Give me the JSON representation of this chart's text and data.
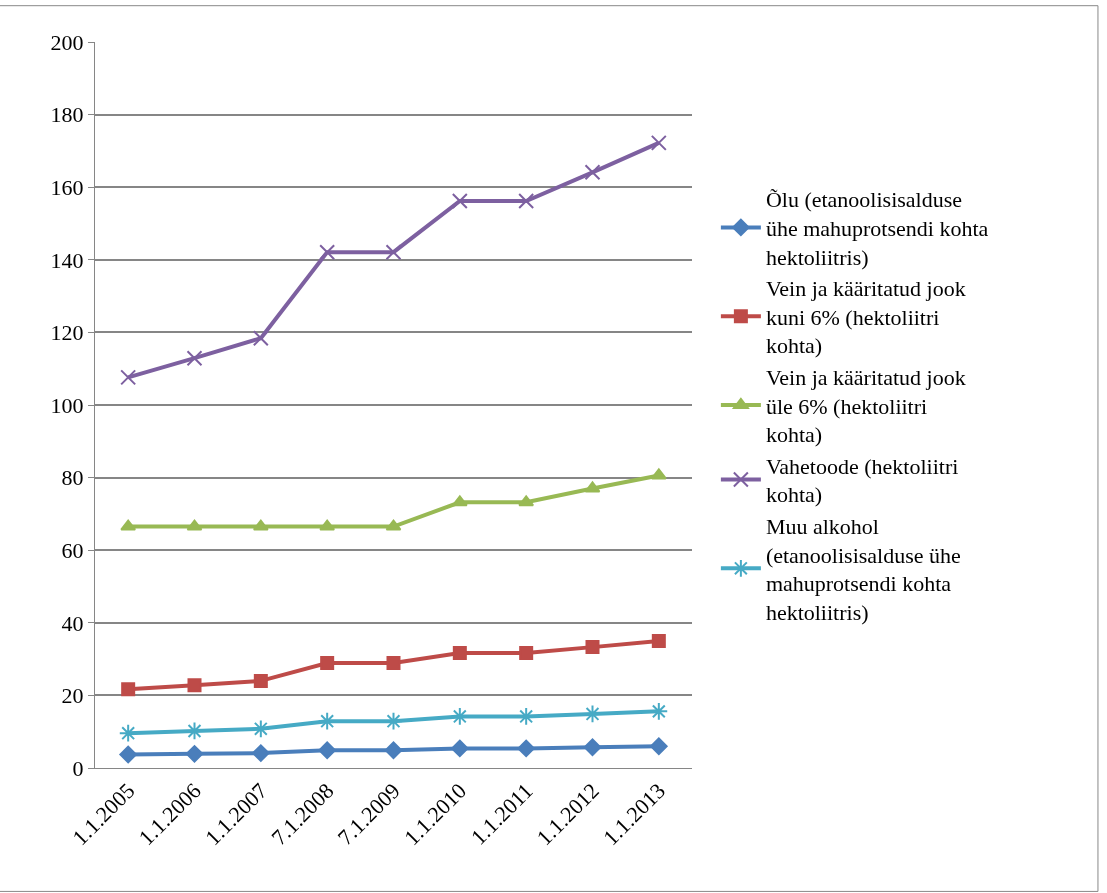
{
  "chart_data": {
    "type": "line",
    "categories": [
      "1.1.2005",
      "1.1.2006",
      "1.1.2007",
      "7.1.2008",
      "7.1.2009",
      "1.1.2010",
      "1.1.2011",
      "1.1.2012",
      "1.1.2013"
    ],
    "series": [
      {
        "name": "Õlu (etanoolisisalduse ühe mahuprotsendi kohta hektoliitris)",
        "color": "#4a7ebb",
        "marker": "diamond",
        "values": [
          3.7,
          3.9,
          4.1,
          4.9,
          4.9,
          5.4,
          5.4,
          5.7,
          6.0
        ]
      },
      {
        "name": "Vein ja kääritatud jook kuni 6% (hektoliitri kohta)",
        "color": "#be4b48",
        "marker": "square",
        "values": [
          21.7,
          22.8,
          24.0,
          28.9,
          28.9,
          31.7,
          31.7,
          33.3,
          35.0
        ]
      },
      {
        "name": "Vein ja kääritatud jook üle 6% (hektoliitri kohta)",
        "color": "#98b954",
        "marker": "triangle",
        "values": [
          66.5,
          66.5,
          66.5,
          66.5,
          66.5,
          73.2,
          73.2,
          77.0,
          80.6
        ]
      },
      {
        "name": "Vahetoode (hektoliitri kohta)",
        "color": "#7d60a0",
        "marker": "cross",
        "values": [
          107.6,
          112.9,
          118.4,
          142.1,
          142.1,
          156.2,
          156.2,
          164.1,
          172.2
        ]
      },
      {
        "name": "Muu alkohol (etanoolisisalduse ühe mahuprotsendi kohta hektoliitris)",
        "color": "#46aac5",
        "marker": "cross",
        "values": [
          9.6,
          10.2,
          10.8,
          12.9,
          12.9,
          14.2,
          14.2,
          14.9,
          15.6
        ]
      }
    ],
    "ylim": [
      0,
      200
    ],
    "yticks": [
      0,
      20,
      40,
      60,
      80,
      100,
      120,
      140,
      160,
      180,
      200
    ],
    "grid": "y",
    "legend": "right",
    "line_style": "solid"
  }
}
